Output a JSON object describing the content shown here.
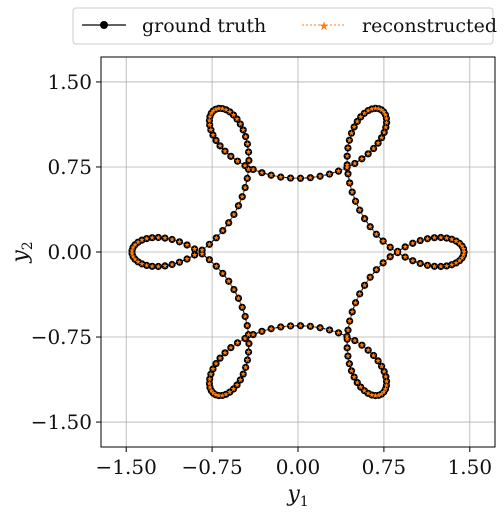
{
  "chart_data": {
    "type": "line",
    "xlabel": "y",
    "xlabel_sub": "1",
    "ylabel": "y",
    "ylabel_sub": "2",
    "xlim": [
      -1.72,
      1.72
    ],
    "ylim": [
      -1.72,
      1.72
    ],
    "xticks": [
      -1.5,
      -0.75,
      0.0,
      0.75,
      1.5
    ],
    "xtick_labels": [
      "−1.50",
      "−0.75",
      "0.00",
      "0.75",
      "1.50"
    ],
    "yticks": [
      -1.5,
      -0.75,
      0.0,
      0.75,
      1.5
    ],
    "ytick_labels": [
      "−1.50",
      "−0.75",
      "0.00",
      "0.75",
      "1.50"
    ],
    "grid": true,
    "legend_position": "top",
    "series": [
      {
        "name": "ground truth",
        "style": "black line with circle markers",
        "color": "#000000"
      },
      {
        "name": "reconstructed",
        "style": "dashed orange line with star markers",
        "color": "#ff7f0e"
      }
    ],
    "curve": {
      "description": "closed rosette-like orbit",
      "R": 1.05,
      "r": 0.4,
      "k": 5,
      "num_points": 221
    }
  }
}
